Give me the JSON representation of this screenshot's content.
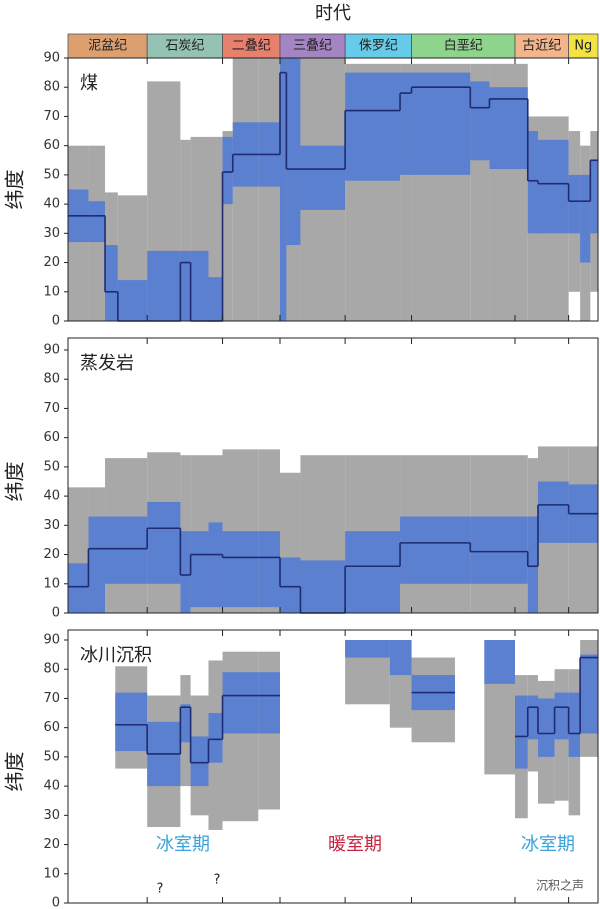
{
  "timescale": {
    "title": "时代",
    "periods": [
      {
        "name": "泥盆纪",
        "color": "#dc9f70",
        "start": 415,
        "end": 353
      },
      {
        "name": "石炭纪",
        "color": "#94c2b4",
        "start": 353,
        "end": 294
      },
      {
        "name": "二叠纪",
        "color": "#e8806e",
        "start": 294,
        "end": 249
      },
      {
        "name": "三叠纪",
        "color": "#a584c4",
        "start": 249,
        "end": 198
      },
      {
        "name": "侏罗纪",
        "color": "#66cbe8",
        "start": 198,
        "end": 146
      },
      {
        "name": "白垩纪",
        "color": "#8fd48c",
        "start": 146,
        "end": 65
      },
      {
        "name": "古近纪",
        "color": "#f2b58c",
        "start": 65,
        "end": 23
      },
      {
        "name": "Ng",
        "color": "#f2e244",
        "start": 23,
        "end": 0
      }
    ]
  },
  "chart_data": [
    {
      "type": "range",
      "title": "煤",
      "y_label": "纬度",
      "xlim": [
        415,
        0
      ],
      "xticks": [
        353,
        294,
        249,
        198,
        146,
        65,
        23
      ],
      "ylim": [
        0,
        90
      ],
      "yticks": [
        0,
        10,
        20,
        30,
        40,
        50,
        60,
        70,
        80,
        90
      ],
      "gray_color": "#a8a8a8",
      "blue_color": "#5b80d0",
      "median_color": "#1f2b72",
      "bins": [
        415,
        399,
        386,
        376,
        353,
        327,
        319,
        305,
        294,
        286,
        266,
        249,
        244,
        233,
        198,
        155,
        146,
        100,
        85,
        55,
        47,
        23,
        14,
        6,
        0
      ],
      "gray_low": [
        0,
        0,
        0,
        0,
        0,
        0,
        0,
        0,
        0,
        0,
        0,
        0,
        0,
        0,
        0,
        0,
        0,
        0,
        0,
        0,
        0,
        10,
        0,
        10
      ],
      "gray_high": [
        60,
        60,
        44,
        43,
        82,
        62,
        63,
        63,
        65,
        90,
        90,
        90,
        90,
        90,
        88,
        88,
        88,
        88,
        88,
        70,
        70,
        65,
        60,
        65
      ],
      "blue_low": [
        27,
        27,
        0,
        0,
        0,
        0,
        0,
        0,
        40,
        46,
        46,
        0,
        26,
        38,
        48,
        50,
        50,
        55,
        52,
        30,
        30,
        30,
        20,
        30
      ],
      "blue_high": [
        45,
        41,
        26,
        14,
        24,
        24,
        24,
        15,
        63,
        68,
        68,
        90,
        90,
        60,
        85,
        85,
        85,
        82,
        80,
        65,
        62,
        50,
        50,
        55
      ],
      "median": [
        36,
        36,
        10,
        0,
        0,
        20,
        0,
        0,
        51,
        57,
        57,
        85,
        52,
        52,
        72,
        78,
        80,
        73,
        76,
        48,
        47,
        41,
        41,
        55
      ]
    },
    {
      "type": "range",
      "title": "蒸发岩",
      "y_label": "纬度",
      "xlim": [
        415,
        0
      ],
      "xticks": [
        353,
        294,
        249,
        198,
        146,
        65,
        23
      ],
      "ylim": [
        0,
        90
      ],
      "yticks": [
        0,
        10,
        20,
        30,
        40,
        50,
        60,
        70,
        80,
        90
      ],
      "gray_color": "#a8a8a8",
      "blue_color": "#5b80d0",
      "median_color": "#1f2b72",
      "bins": [
        415,
        399,
        386,
        353,
        327,
        319,
        305,
        294,
        266,
        249,
        233,
        198,
        155,
        100,
        55,
        47,
        23,
        0
      ],
      "gray_low": [
        0,
        0,
        0,
        0,
        0,
        0,
        0,
        0,
        0,
        0,
        0,
        0,
        0,
        0,
        0,
        0,
        0
      ],
      "gray_high": [
        43,
        43,
        53,
        55,
        54,
        54,
        54,
        56,
        56,
        48,
        54,
        54,
        54,
        54,
        53,
        57,
        57
      ],
      "blue_low": [
        0,
        0,
        10,
        10,
        0,
        2,
        2,
        2,
        2,
        0,
        0,
        0,
        10,
        10,
        0,
        24,
        24
      ],
      "blue_high": [
        17,
        33,
        33,
        38,
        28,
        28,
        31,
        28,
        28,
        19,
        18,
        28,
        33,
        33,
        33,
        45,
        44
      ],
      "median": [
        9,
        22,
        22,
        29,
        13,
        20,
        20,
        19,
        19,
        9,
        0,
        16,
        24,
        21,
        16,
        37,
        34
      ]
    },
    {
      "type": "range",
      "title": "冰川沉积",
      "y_label": "纬度",
      "xlim": [
        415,
        0
      ],
      "xticks": [
        353,
        294,
        249,
        198,
        146,
        65,
        23
      ],
      "ylim": [
        0,
        90
      ],
      "yticks": [
        0,
        10,
        20,
        30,
        40,
        50,
        60,
        70,
        80,
        90
      ],
      "gray_color": "#a8a8a8",
      "blue_color": "#5b80d0",
      "median_color": "#1f2b72",
      "bins": [
        415,
        378,
        353,
        327,
        319,
        305,
        294,
        266,
        249,
        198,
        163,
        146,
        112,
        89,
        65,
        55,
        47,
        34,
        23,
        14,
        0
      ],
      "gray_low": [
        null,
        46,
        26,
        40,
        30,
        25,
        28,
        32,
        null,
        68,
        60,
        55,
        null,
        44,
        29,
        45,
        34,
        35,
        30,
        50
      ],
      "gray_high": [
        null,
        81,
        71,
        78,
        71,
        83,
        86,
        86,
        null,
        90,
        90,
        84,
        null,
        90,
        78,
        78,
        76,
        80,
        80,
        90
      ],
      "blue_low": [
        null,
        52,
        40,
        55,
        40,
        48,
        58,
        58,
        null,
        84,
        78,
        66,
        null,
        75,
        46,
        56,
        50,
        56,
        50,
        58
      ],
      "blue_high": [
        null,
        72,
        62,
        68,
        57,
        65,
        79,
        79,
        null,
        90,
        90,
        78,
        null,
        90,
        71,
        71,
        70,
        72,
        72,
        85
      ],
      "median": [
        null,
        61,
        51,
        67,
        48,
        56,
        71,
        71,
        null,
        null,
        null,
        72,
        null,
        null,
        57,
        67,
        58,
        67,
        58,
        84
      ],
      "annotations": [
        {
          "text": "冰室期",
          "color": "#3ba3d9"
        },
        {
          "text": "暖室期",
          "color": "#c8233f"
        },
        {
          "text": "冰室期",
          "color": "#3ba3d9"
        },
        {
          "text": "?",
          "color": "#222222"
        },
        {
          "text": "?",
          "color": "#222222"
        }
      ]
    }
  ],
  "watermark": "沉积之声"
}
